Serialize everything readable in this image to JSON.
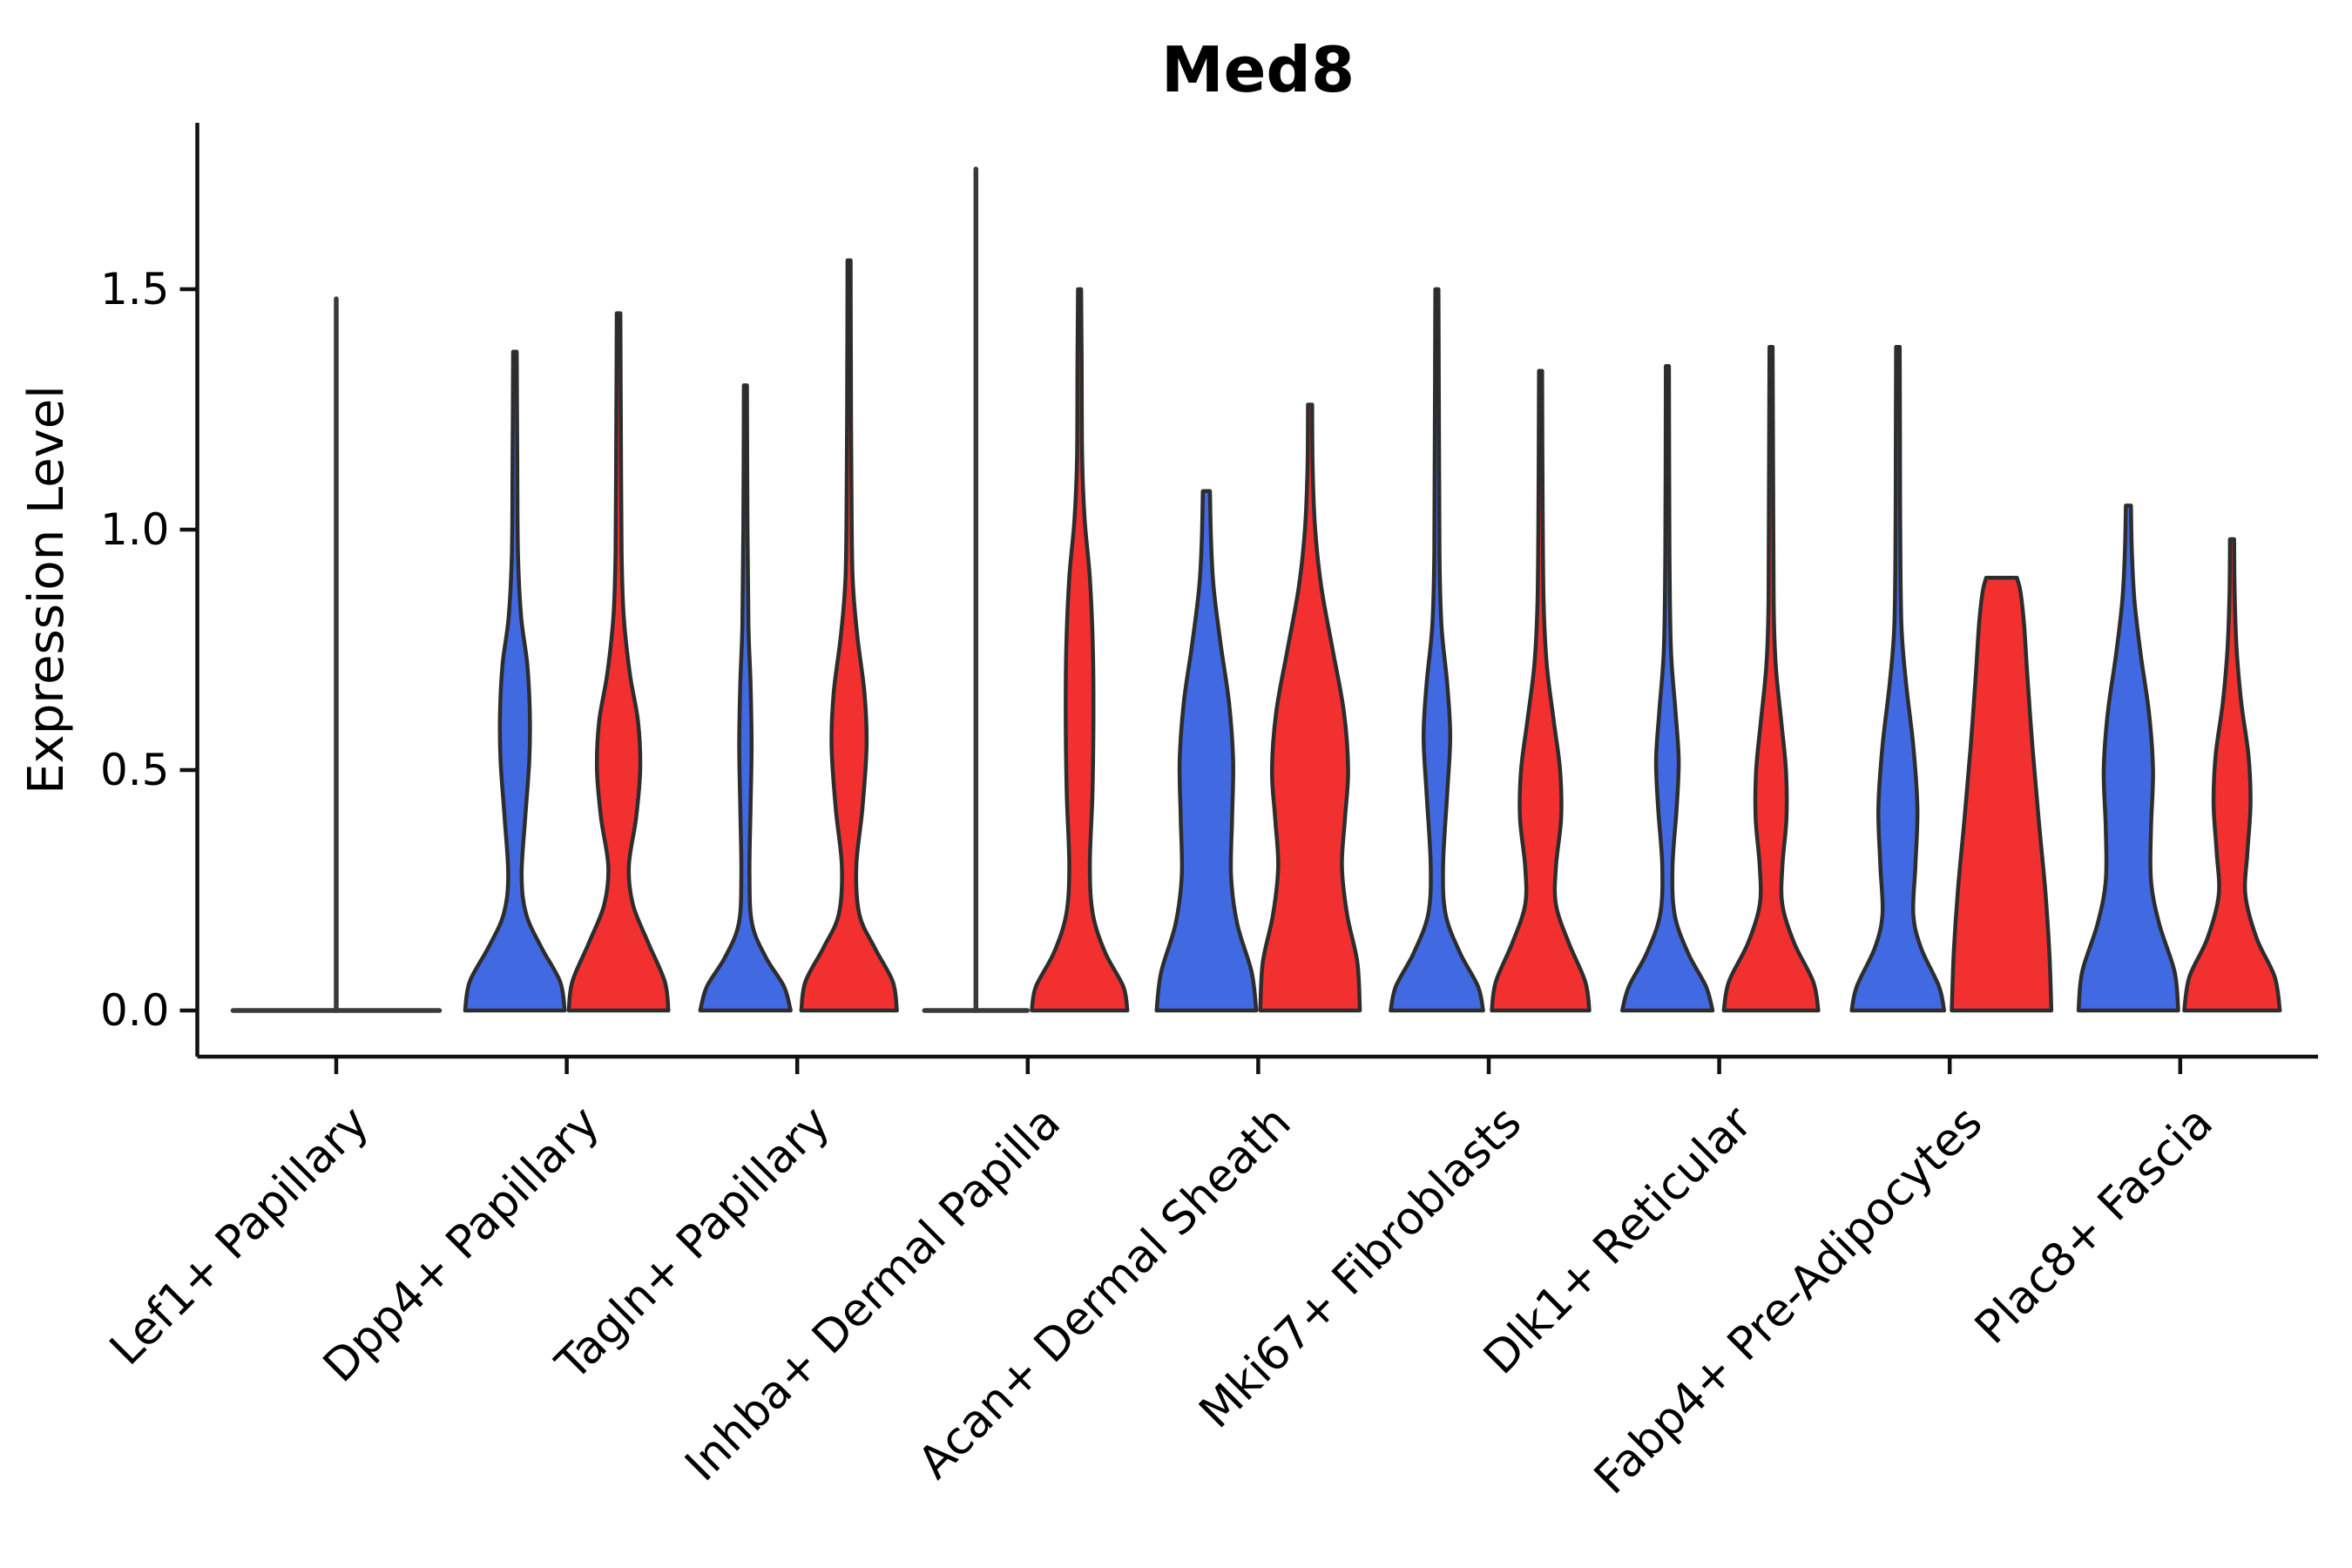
{
  "title": "Med8",
  "chart_data": {
    "type": "violin",
    "title": "Med8",
    "ylabel": "Expression Level",
    "xlabel": "",
    "grid": false,
    "legend_position": "none",
    "ylim": [
      -0.06,
      1.84
    ],
    "ytick_labels": [
      "0.0",
      "0.5",
      "1.0",
      "1.5"
    ],
    "ytick_values": [
      0.0,
      0.5,
      1.0,
      1.5
    ],
    "colors": {
      "blue_fill": "#4169E1",
      "red_fill": "#F23030",
      "outline": "#2D2D2D",
      "axis": "#111111",
      "flat_line": "#3A3A3A"
    },
    "categories": [
      "Lef1+ Papillary",
      "Dpp4+ Papillary",
      "Tagln+ Papillary",
      "Inhba+ Dermal Papilla",
      "Acan+ Dermal Sheath",
      "Mki67+ Fibroblasts",
      "Dlk1+ Reticular",
      "Fabp4+ Pre-Adipocytes",
      "Plac8+ Fascia"
    ],
    "violins": [
      {
        "category": "Lef1+ Papillary",
        "blue": {
          "kind": "flat-spike",
          "max": 1.48,
          "spike_value": 1.48,
          "spike_anchor": "right-edge"
        },
        "red": {
          "kind": "flat",
          "max": 0
        }
      },
      {
        "category": "Dpp4+ Papillary",
        "blue": {
          "kind": "violin",
          "max": 1.37,
          "flat_top": false,
          "profile": [
            [
              0,
              0.97
            ],
            [
              0.06,
              0.88
            ],
            [
              0.13,
              0.52
            ],
            [
              0.2,
              0.22
            ],
            [
              0.28,
              0.13
            ],
            [
              0.4,
              0.2
            ],
            [
              0.52,
              0.28
            ],
            [
              0.62,
              0.29
            ],
            [
              0.72,
              0.24
            ],
            [
              0.82,
              0.12
            ],
            [
              0.95,
              0.06
            ],
            [
              1.15,
              0.045
            ],
            [
              1.37,
              0.035
            ]
          ]
        },
        "red": {
          "kind": "violin",
          "max": 1.45,
          "flat_top": false,
          "profile": [
            [
              0,
              0.97
            ],
            [
              0.06,
              0.9
            ],
            [
              0.14,
              0.58
            ],
            [
              0.22,
              0.28
            ],
            [
              0.3,
              0.2
            ],
            [
              0.4,
              0.34
            ],
            [
              0.5,
              0.42
            ],
            [
              0.6,
              0.38
            ],
            [
              0.7,
              0.22
            ],
            [
              0.82,
              0.1
            ],
            [
              0.95,
              0.06
            ],
            [
              1.2,
              0.045
            ],
            [
              1.45,
              0.035
            ]
          ]
        }
      },
      {
        "category": "Tagln+ Papillary",
        "blue": {
          "kind": "violin",
          "max": 1.3,
          "flat_top": false,
          "profile": [
            [
              0,
              0.88
            ],
            [
              0.05,
              0.75
            ],
            [
              0.11,
              0.4
            ],
            [
              0.18,
              0.13
            ],
            [
              0.28,
              0.08
            ],
            [
              0.42,
              0.1
            ],
            [
              0.55,
              0.12
            ],
            [
              0.68,
              0.1
            ],
            [
              0.8,
              0.06
            ],
            [
              1.0,
              0.04
            ],
            [
              1.3,
              0.03
            ]
          ]
        },
        "red": {
          "kind": "violin",
          "max": 1.56,
          "flat_top": false,
          "profile": [
            [
              0,
              0.93
            ],
            [
              0.06,
              0.85
            ],
            [
              0.13,
              0.5
            ],
            [
              0.2,
              0.2
            ],
            [
              0.3,
              0.14
            ],
            [
              0.42,
              0.26
            ],
            [
              0.55,
              0.34
            ],
            [
              0.66,
              0.3
            ],
            [
              0.78,
              0.16
            ],
            [
              0.9,
              0.07
            ],
            [
              1.1,
              0.045
            ],
            [
              1.35,
              0.035
            ],
            [
              1.56,
              0.03
            ]
          ]
        }
      },
      {
        "category": "Inhba+ Dermal Papilla",
        "blue": {
          "kind": "flat-spike",
          "max": 1.75,
          "spike_value": 1.75,
          "spike_anchor": "center"
        },
        "red": {
          "kind": "violin",
          "max": 1.5,
          "flat_top": false,
          "profile": [
            [
              0,
              0.93
            ],
            [
              0.05,
              0.85
            ],
            [
              0.12,
              0.5
            ],
            [
              0.2,
              0.26
            ],
            [
              0.3,
              0.2
            ],
            [
              0.45,
              0.25
            ],
            [
              0.6,
              0.27
            ],
            [
              0.75,
              0.26
            ],
            [
              0.9,
              0.2
            ],
            [
              1.02,
              0.1
            ],
            [
              1.15,
              0.05
            ],
            [
              1.35,
              0.04
            ],
            [
              1.5,
              0.03
            ]
          ]
        }
      },
      {
        "category": "Acan+ Dermal Sheath",
        "blue": {
          "kind": "violin",
          "max": 1.08,
          "flat_top": false,
          "profile": [
            [
              0,
              0.97
            ],
            [
              0.08,
              0.88
            ],
            [
              0.18,
              0.6
            ],
            [
              0.28,
              0.48
            ],
            [
              0.4,
              0.5
            ],
            [
              0.52,
              0.52
            ],
            [
              0.64,
              0.44
            ],
            [
              0.76,
              0.28
            ],
            [
              0.88,
              0.14
            ],
            [
              0.98,
              0.09
            ],
            [
              1.08,
              0.07
            ]
          ]
        },
        "red": {
          "kind": "violin",
          "max": 1.26,
          "flat_top": false,
          "profile": [
            [
              0,
              0.97
            ],
            [
              0.1,
              0.92
            ],
            [
              0.2,
              0.72
            ],
            [
              0.3,
              0.62
            ],
            [
              0.4,
              0.68
            ],
            [
              0.5,
              0.74
            ],
            [
              0.62,
              0.66
            ],
            [
              0.75,
              0.44
            ],
            [
              0.88,
              0.22
            ],
            [
              1.0,
              0.1
            ],
            [
              1.13,
              0.05
            ],
            [
              1.26,
              0.04
            ]
          ]
        }
      },
      {
        "category": "Mki67+ Fibroblasts",
        "blue": {
          "kind": "violin",
          "max": 1.5,
          "flat_top": false,
          "profile": [
            [
              0,
              0.9
            ],
            [
              0.05,
              0.8
            ],
            [
              0.12,
              0.45
            ],
            [
              0.2,
              0.17
            ],
            [
              0.3,
              0.12
            ],
            [
              0.45,
              0.2
            ],
            [
              0.57,
              0.26
            ],
            [
              0.68,
              0.2
            ],
            [
              0.8,
              0.09
            ],
            [
              0.95,
              0.05
            ],
            [
              1.2,
              0.04
            ],
            [
              1.5,
              0.03
            ]
          ]
        },
        "red": {
          "kind": "violin",
          "max": 1.33,
          "flat_top": false,
          "profile": [
            [
              0,
              0.95
            ],
            [
              0.06,
              0.87
            ],
            [
              0.14,
              0.55
            ],
            [
              0.22,
              0.3
            ],
            [
              0.3,
              0.3
            ],
            [
              0.4,
              0.4
            ],
            [
              0.5,
              0.38
            ],
            [
              0.6,
              0.26
            ],
            [
              0.72,
              0.12
            ],
            [
              0.85,
              0.06
            ],
            [
              1.05,
              0.04
            ],
            [
              1.33,
              0.03
            ]
          ]
        }
      },
      {
        "category": "Dlk1+ Reticular",
        "blue": {
          "kind": "violin",
          "max": 1.34,
          "flat_top": false,
          "profile": [
            [
              0,
              0.88
            ],
            [
              0.05,
              0.75
            ],
            [
              0.12,
              0.4
            ],
            [
              0.2,
              0.14
            ],
            [
              0.3,
              0.1
            ],
            [
              0.42,
              0.18
            ],
            [
              0.52,
              0.22
            ],
            [
              0.62,
              0.16
            ],
            [
              0.75,
              0.07
            ],
            [
              0.95,
              0.04
            ],
            [
              1.34,
              0.03
            ]
          ]
        },
        "red": {
          "kind": "violin",
          "max": 1.38,
          "flat_top": false,
          "profile": [
            [
              0,
              0.92
            ],
            [
              0.06,
              0.82
            ],
            [
              0.14,
              0.45
            ],
            [
              0.22,
              0.22
            ],
            [
              0.3,
              0.22
            ],
            [
              0.4,
              0.3
            ],
            [
              0.5,
              0.29
            ],
            [
              0.6,
              0.2
            ],
            [
              0.72,
              0.09
            ],
            [
              0.85,
              0.05
            ],
            [
              1.1,
              0.04
            ],
            [
              1.38,
              0.03
            ]
          ]
        }
      },
      {
        "category": "Fabp4+ Pre-Adipocytes",
        "blue": {
          "kind": "violin",
          "max": 1.38,
          "flat_top": false,
          "profile": [
            [
              0,
              0.9
            ],
            [
              0.05,
              0.8
            ],
            [
              0.13,
              0.45
            ],
            [
              0.2,
              0.3
            ],
            [
              0.3,
              0.34
            ],
            [
              0.42,
              0.38
            ],
            [
              0.55,
              0.3
            ],
            [
              0.68,
              0.16
            ],
            [
              0.8,
              0.07
            ],
            [
              1.0,
              0.045
            ],
            [
              1.2,
              0.04
            ],
            [
              1.38,
              0.035
            ]
          ]
        },
        "red": {
          "kind": "violin",
          "max": 0.9,
          "flat_top": true,
          "profile": [
            [
              0,
              0.97
            ],
            [
              0.12,
              0.93
            ],
            [
              0.25,
              0.85
            ],
            [
              0.4,
              0.72
            ],
            [
              0.55,
              0.6
            ],
            [
              0.7,
              0.5
            ],
            [
              0.8,
              0.44
            ],
            [
              0.87,
              0.37
            ],
            [
              0.9,
              0.3
            ]
          ]
        }
      },
      {
        "category": "Plac8+ Fascia",
        "blue": {
          "kind": "violin",
          "max": 1.05,
          "flat_top": false,
          "profile": [
            [
              0,
              0.97
            ],
            [
              0.08,
              0.9
            ],
            [
              0.18,
              0.6
            ],
            [
              0.27,
              0.44
            ],
            [
              0.38,
              0.44
            ],
            [
              0.5,
              0.48
            ],
            [
              0.62,
              0.4
            ],
            [
              0.74,
              0.24
            ],
            [
              0.85,
              0.12
            ],
            [
              0.95,
              0.07
            ],
            [
              1.05,
              0.05
            ]
          ]
        },
        "red": {
          "kind": "violin",
          "max": 0.98,
          "flat_top": false,
          "profile": [
            [
              0,
              0.93
            ],
            [
              0.07,
              0.83
            ],
            [
              0.15,
              0.48
            ],
            [
              0.24,
              0.26
            ],
            [
              0.33,
              0.3
            ],
            [
              0.43,
              0.36
            ],
            [
              0.53,
              0.32
            ],
            [
              0.64,
              0.18
            ],
            [
              0.75,
              0.09
            ],
            [
              0.87,
              0.05
            ],
            [
              0.98,
              0.04
            ]
          ]
        }
      }
    ]
  }
}
